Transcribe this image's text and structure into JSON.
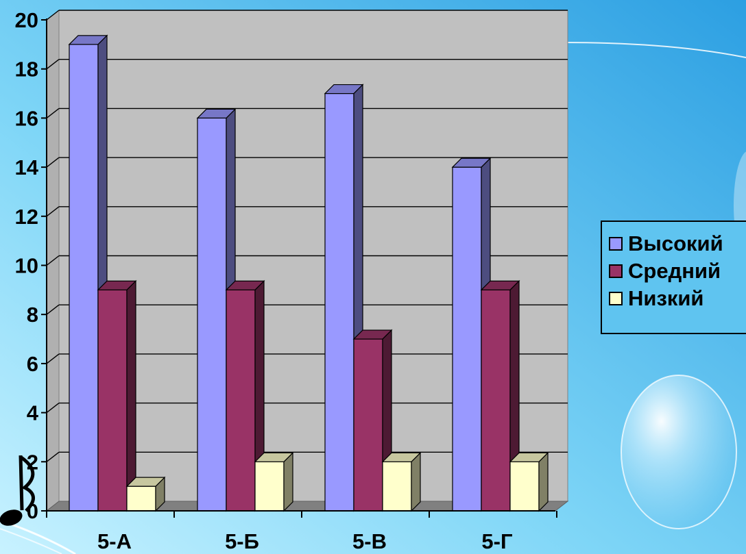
{
  "chart_data": {
    "type": "bar",
    "categories": [
      "5-А",
      "5-Б",
      "5-В",
      "5-Г"
    ],
    "series": [
      {
        "name": "Высокий",
        "values": [
          19,
          16,
          17,
          14
        ],
        "color": "#9999ff"
      },
      {
        "name": "Средний",
        "values": [
          9,
          9,
          7,
          9
        ],
        "color": "#993366"
      },
      {
        "name": "Низкий",
        "values": [
          1,
          2,
          2,
          2
        ],
        "color": "#ffffcc"
      }
    ],
    "ylim": [
      0,
      20
    ],
    "yticks": [
      "0",
      "2",
      "4",
      "6",
      "8",
      "10",
      "12",
      "14",
      "16",
      "18",
      "20"
    ],
    "grid": true,
    "legend_position": "right",
    "style": "3d-column"
  }
}
